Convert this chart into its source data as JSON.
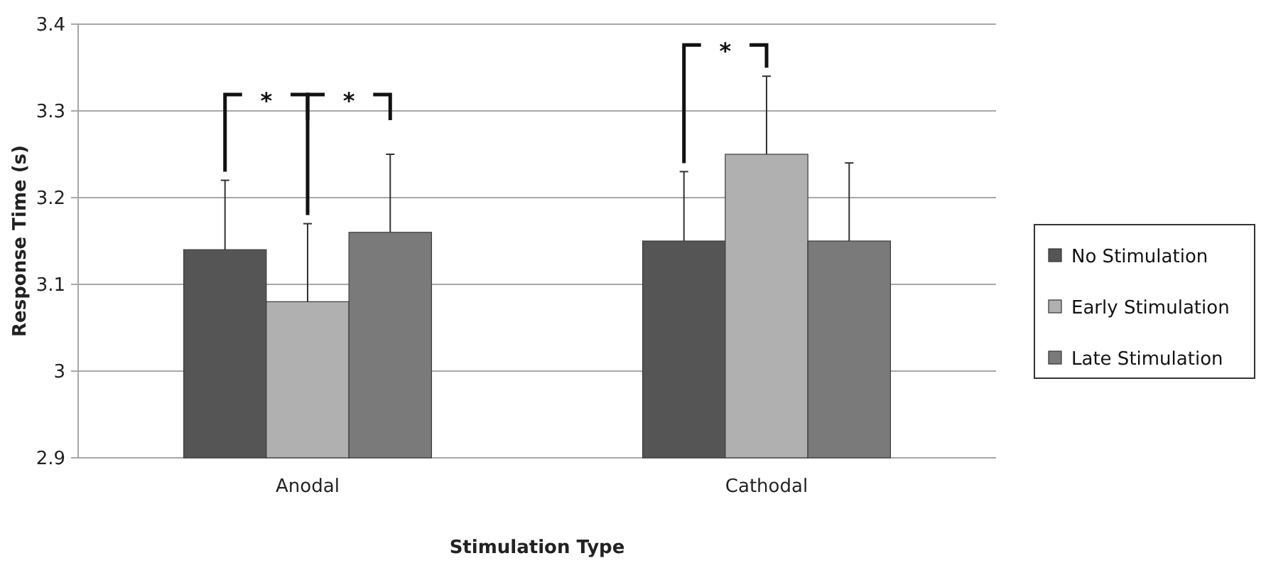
{
  "chart_data": {
    "type": "bar",
    "xlabel": "Stimulation Type",
    "ylabel": "Response Time (s)",
    "categories": [
      "Anodal",
      "Cathodal"
    ],
    "series": [
      {
        "name": "No Stimulation",
        "color": "#555555",
        "values": [
          3.14,
          3.15
        ],
        "errors": [
          [
            3.14,
            3.22
          ],
          [
            3.15,
            3.23
          ]
        ]
      },
      {
        "name": "Early Stimulation",
        "color": "#b0b0b0",
        "values": [
          3.08,
          3.25
        ],
        "errors": [
          [
            3.08,
            3.17
          ],
          [
            3.25,
            3.34
          ]
        ]
      },
      {
        "name": "Late Stimulation",
        "color": "#7a7a7a",
        "values": [
          3.16,
          3.15
        ],
        "errors": [
          [
            3.16,
            3.25
          ],
          [
            3.15,
            3.24
          ]
        ]
      }
    ],
    "ylim": [
      2.9,
      3.4
    ],
    "yticks": [
      2.9,
      3,
      3.1,
      3.2,
      3.3,
      3.4
    ],
    "grid": "y",
    "legend": "right",
    "annotations": [
      "*",
      "*",
      "*"
    ]
  }
}
